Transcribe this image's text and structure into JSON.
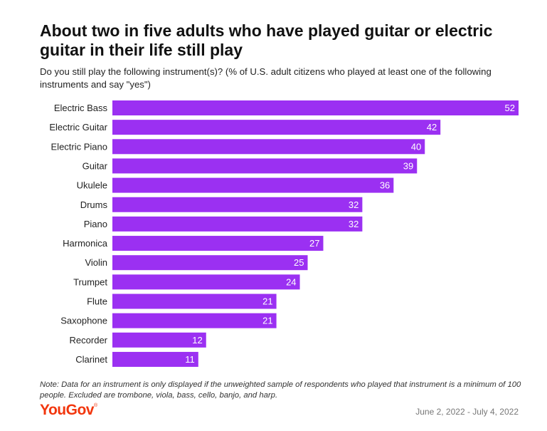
{
  "header": {
    "title": "About two in five adults who have played guitar or electric guitar in their life still play",
    "subtitle": "Do you still play the following instrument(s)? (% of U.S. adult citizens who played at least one of the following instruments and say \"yes\")"
  },
  "footer": {
    "note": "Note: Data for an instrument is only displayed if the unweighted sample of respondents who played that instrument is a minimum of 100 people. Excluded are trombone, viola, bass, cello, banjo, and harp.",
    "brand": "YouGov",
    "brand_mark": "®",
    "date_range": "June 2, 2022 - July 4, 2022"
  },
  "colors": {
    "bar": "#9b30f2",
    "brand": "#f2360d"
  },
  "chart_data": {
    "type": "bar",
    "orientation": "horizontal",
    "title": "About two in five adults who have played guitar or electric guitar in their life still play",
    "subtitle": "Do you still play the following instrument(s)? (% of U.S. adult citizens who played at least one of the following instruments and say \"yes\")",
    "xlabel": "",
    "ylabel": "",
    "categories": [
      "Electric Bass",
      "Electric Guitar",
      "Electric Piano",
      "Guitar",
      "Ukulele",
      "Drums",
      "Piano",
      "Harmonica",
      "Violin",
      "Trumpet",
      "Flute",
      "Saxophone",
      "Recorder",
      "Clarinet"
    ],
    "values": [
      52,
      42,
      40,
      39,
      36,
      32,
      32,
      27,
      25,
      24,
      21,
      21,
      12,
      11
    ],
    "xlim": [
      0,
      52
    ],
    "grid": false,
    "legend": "none",
    "data_labels": "inside-end"
  }
}
